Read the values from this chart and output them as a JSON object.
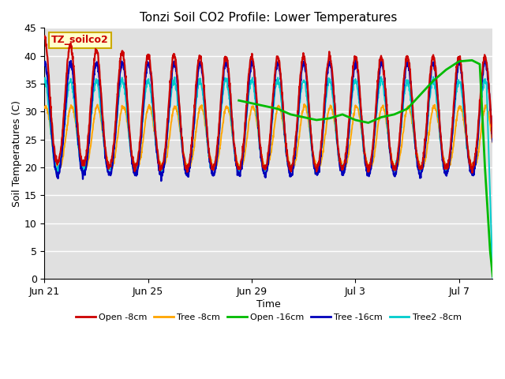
{
  "title": "Tonzi Soil CO2 Profile: Lower Temperatures",
  "xlabel": "Time",
  "ylabel": "Soil Temperatures (C)",
  "ylim": [
    0,
    45
  ],
  "yticks": [
    0,
    5,
    10,
    15,
    20,
    25,
    30,
    35,
    40,
    45
  ],
  "background_color": "#e0e0e0",
  "series": {
    "open_8cm": {
      "label": "Open -8cm",
      "color": "#cc0000"
    },
    "tree_8cm": {
      "label": "Tree -8cm",
      "color": "#ffa500"
    },
    "open_16cm": {
      "label": "Open -16cm",
      "color": "#00bb00"
    },
    "tree_16cm": {
      "label": "Tree -16cm",
      "color": "#0000bb"
    },
    "tree2_8cm": {
      "label": "Tree2 -8cm",
      "color": "#00cccc"
    }
  },
  "annotation_label": "TZ_soilco2",
  "annotation_color": "#cc0000",
  "annotation_bg": "#ffffcc",
  "annotation_border": "#ccaa00",
  "xtick_positions": [
    0,
    4,
    8,
    12,
    16
  ],
  "xtick_labels": [
    "Jun 21",
    "Jun 25",
    "Jun 29",
    "Jul 3",
    "Jul 7"
  ],
  "n_days": 17.3
}
